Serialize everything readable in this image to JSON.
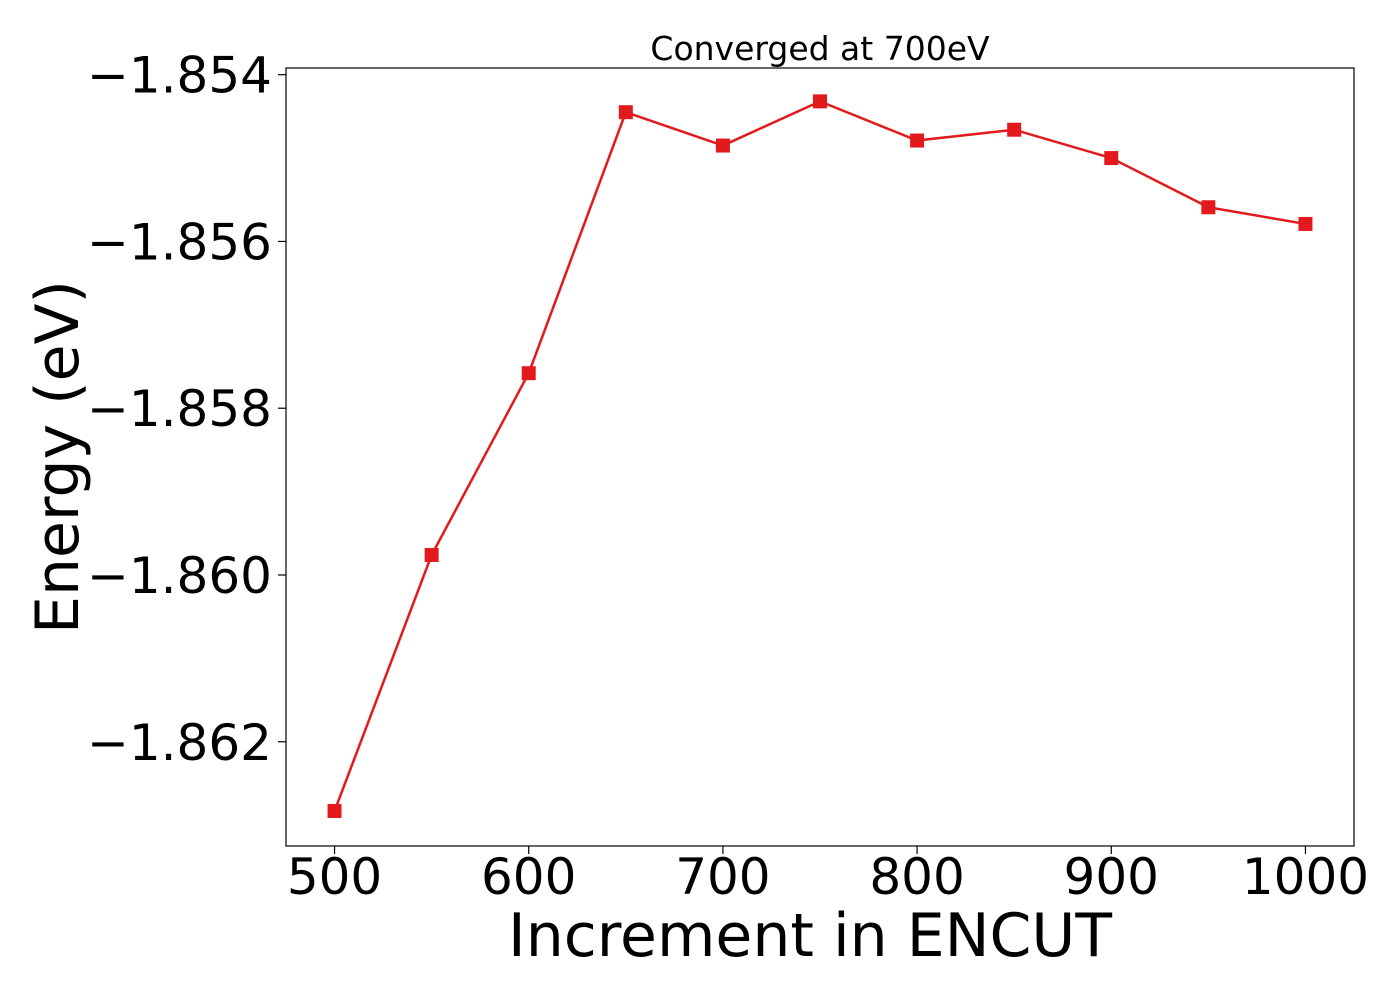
{
  "chart_data": {
    "type": "line",
    "title": "Converged at 700eV",
    "xlabel": "Increment in ENCUT",
    "ylabel": "Energy (eV)",
    "x": [
      500,
      550,
      600,
      650,
      700,
      750,
      800,
      850,
      900,
      950,
      1000
    ],
    "series": [
      {
        "values": [
          -1.86283,
          -1.85976,
          -1.85758,
          -1.85445,
          -1.85485,
          -1.85432,
          -1.85479,
          -1.85466,
          -1.855,
          -1.85559,
          -1.85579
        ],
        "color": "#e31a1c",
        "marker": "square"
      }
    ],
    "xlim": [
      475,
      1025
    ],
    "ylim": [
      -1.86325,
      -1.85392
    ],
    "xticks": [
      500,
      600,
      700,
      800,
      900,
      1000
    ],
    "xtick_labels": [
      "500",
      "600",
      "700",
      "800",
      "900",
      "1000"
    ],
    "yticks": [
      -1.862,
      -1.86,
      -1.858,
      -1.856,
      -1.854
    ],
    "ytick_labels": [
      "−1.862",
      "−1.860",
      "−1.858",
      "−1.856",
      "−1.854"
    ],
    "grid": false,
    "legend": "none"
  }
}
